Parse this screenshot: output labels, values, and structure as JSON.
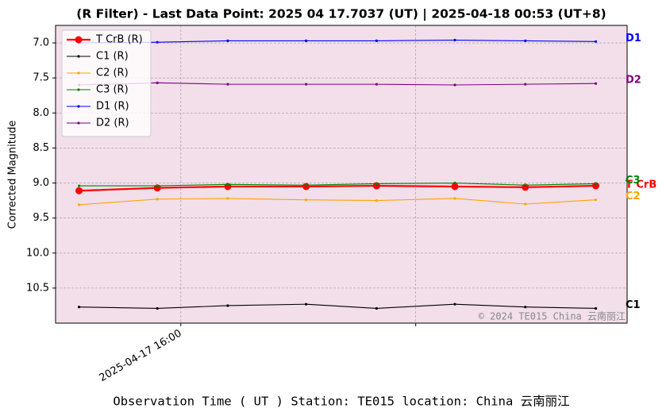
{
  "chart_data": {
    "type": "line",
    "title": "(R Filter) - Last Data Point: 2025 04 17.7037 (UT) | 2025-04-18 00:53 (UT+8)",
    "xlabel": "Observation Time ( UT )  Station: TE015 location: China 云南丽江",
    "ylabel": "Corrected Magnitude",
    "watermark": "© 2024 TE015 China 云南丽江",
    "x": [
      "2025-04-17 15:47",
      "2025-04-17 15:57",
      "2025-04-17 16:06",
      "2025-04-17 16:16",
      "2025-04-17 16:25",
      "2025-04-17 16:35",
      "2025-04-17 16:44",
      "2025-04-17 16:53"
    ],
    "xlim": [
      "2025-04-17 15:44",
      "2025-04-17 16:57"
    ],
    "xticks": [
      "2025-04-17 16:00",
      {
        "value": "2025-04-17 16:30",
        "label": null
      }
    ],
    "ylim": [
      11.0,
      6.75
    ],
    "yticks": [
      {
        "value": 7,
        "label": "7.0"
      },
      7.5,
      {
        "value": 8,
        "label": "8.0"
      },
      8.5,
      {
        "value": 9,
        "label": "9.0"
      },
      9.5,
      {
        "value": 10,
        "label": "10.0"
      },
      10.5
    ],
    "grid": true,
    "legend": "upper left",
    "background": "#f2dfea",
    "series": [
      {
        "name": "T CrB (R)",
        "end_label": "T CrB",
        "color": "#ff0000",
        "values": [
          9.11,
          9.07,
          9.05,
          9.05,
          9.04,
          9.05,
          9.06,
          9.04
        ]
      },
      {
        "name": "C1 (R)",
        "end_label": "C1",
        "color": "#000000",
        "values": [
          10.77,
          10.79,
          10.75,
          10.73,
          10.79,
          10.73,
          10.77,
          10.79
        ]
      },
      {
        "name": "C2 (R)",
        "end_label": "C2",
        "color": "#ffa500",
        "values": [
          9.31,
          9.23,
          9.22,
          9.24,
          9.25,
          9.22,
          9.3,
          9.24
        ]
      },
      {
        "name": "C3 (R)",
        "end_label": "C3",
        "color": "#008000",
        "values": [
          9.04,
          9.04,
          9.02,
          9.03,
          9.01,
          9.0,
          9.03,
          9.01
        ]
      },
      {
        "name": "D1 (R)",
        "end_label": "D1",
        "color": "#0000ff",
        "values": [
          7.0,
          6.99,
          6.97,
          6.97,
          6.97,
          6.96,
          6.97,
          6.98
        ]
      },
      {
        "name": "D2 (R)",
        "end_label": "D2",
        "color": "#800080",
        "values": [
          7.6,
          7.57,
          7.59,
          7.59,
          7.59,
          7.6,
          7.59,
          7.58
        ]
      }
    ]
  }
}
